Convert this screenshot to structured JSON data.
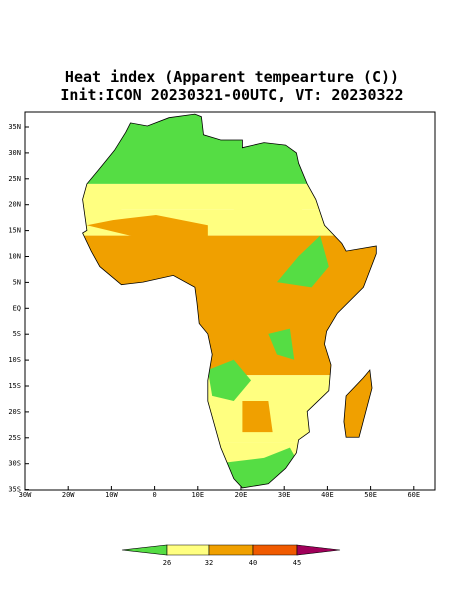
{
  "title": "Heat index (Apparent tempearture (C))",
  "subtitle": "Init:ICON 20230321-00UTC, VT: 20230322",
  "map": {
    "lat_labels": [
      "35N",
      "30N",
      "25N",
      "20N",
      "15N",
      "10N",
      "5N",
      "EQ",
      "5S",
      "10S",
      "15S",
      "20S",
      "25S",
      "30S",
      "35S"
    ],
    "lon_labels": [
      "30W",
      "20W",
      "10W",
      "0",
      "10E",
      "20E",
      "30E",
      "40E",
      "50E",
      "60E"
    ]
  },
  "colorbar": {
    "ticks": [
      26,
      32,
      40,
      45
    ],
    "colors": [
      "#55dd44",
      "#ffff80",
      "#f0a000",
      "#f05a00",
      "#a0005a"
    ]
  }
}
